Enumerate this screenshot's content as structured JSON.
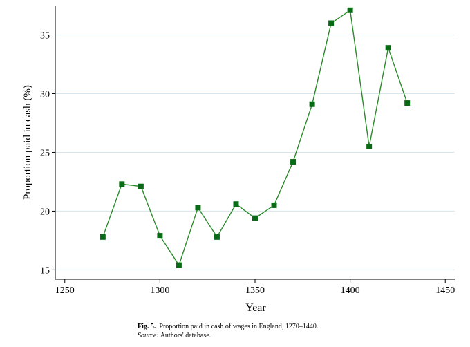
{
  "chart_data": {
    "type": "line",
    "ylabel": "Proportion paid in cash (%)",
    "xlabel": "Year",
    "xlim": [
      1245,
      1455
    ],
    "ylim": [
      14.2,
      37.5
    ],
    "xticks": [
      1250,
      1300,
      1350,
      1400,
      1450
    ],
    "yticks": [
      15,
      20,
      25,
      30,
      35
    ],
    "grid": true,
    "series": [
      {
        "x": [
          1270,
          1280,
          1290,
          1300,
          1310,
          1320,
          1330,
          1340,
          1350,
          1360,
          1370,
          1380,
          1390,
          1400,
          1410,
          1420,
          1430
        ],
        "values": [
          17.8,
          22.3,
          22.1,
          17.9,
          15.4,
          20.3,
          17.8,
          20.6,
          19.4,
          20.5,
          24.2,
          29.1,
          36.0,
          37.1,
          25.5,
          33.9,
          29.2
        ],
        "color": "#2a8a2a",
        "marker_color": "#0a6b16",
        "marker": "square"
      }
    ]
  },
  "caption": {
    "fig_label": "Fig. 5.",
    "fig_text": "Proportion paid in cash of wages in England, 1270–1440.",
    "source_label": "Source:",
    "source_text": "Authors' database."
  }
}
